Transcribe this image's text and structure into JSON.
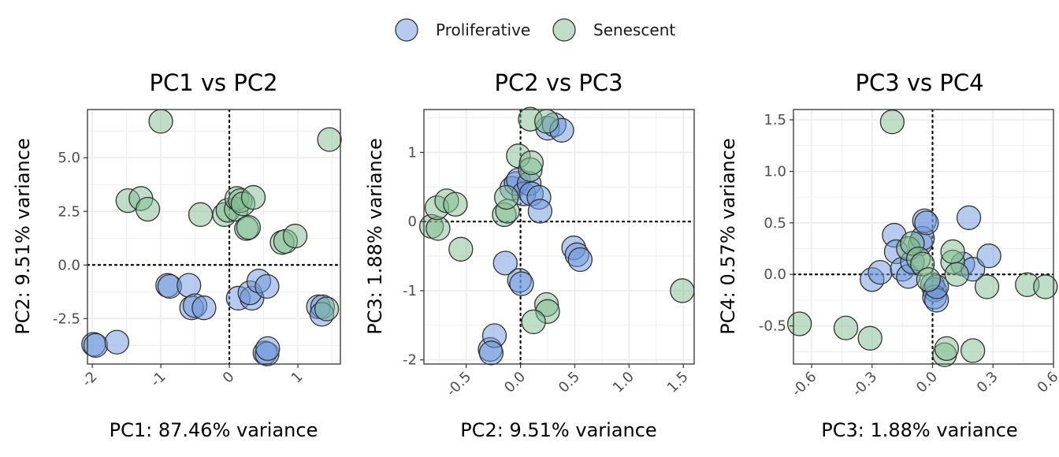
{
  "legend": {
    "placement": "top-center",
    "items": [
      {
        "label": "Proliferative",
        "color": "#6d98dc"
      },
      {
        "label": "Senescent",
        "color": "#7fbc8f"
      }
    ]
  },
  "style": {
    "point_alpha": 0.5,
    "point_stroke": "#333333",
    "gridlines": true,
    "reference_lines": "dotted at zero"
  },
  "chart_data": [
    {
      "type": "scatter",
      "title": "PC1 vs PC2",
      "xlabel": "PC1: 87.46% variance",
      "ylabel": "PC2: 9.51% variance",
      "xlim": [
        -2.07,
        1.62
      ],
      "ylim": [
        -4.62,
        7.25
      ],
      "xticks": [
        -2,
        -1,
        0,
        1
      ],
      "xtick_labels": [
        "-2",
        "-1",
        "0",
        "1"
      ],
      "yticks": [
        -2.5,
        0,
        2.5,
        5
      ],
      "ytick_labels": [
        "-2.5",
        "0.0",
        "2.5",
        "5.0"
      ],
      "series": [
        {
          "name": "Proliferative",
          "points": [
            [
              -1.98,
              -3.7
            ],
            [
              -1.95,
              -3.75
            ],
            [
              -1.64,
              -3.6
            ],
            [
              -0.9,
              -0.95
            ],
            [
              -0.87,
              -1.0
            ],
            [
              -0.59,
              -0.95
            ],
            [
              -0.55,
              -2.0
            ],
            [
              -0.5,
              -1.9
            ],
            [
              -0.37,
              -2.0
            ],
            [
              0.13,
              -1.55
            ],
            [
              0.33,
              -1.55
            ],
            [
              0.3,
              -1.3
            ],
            [
              0.43,
              -0.75
            ],
            [
              0.55,
              -1.0
            ],
            [
              0.52,
              -4.1
            ],
            [
              0.55,
              -4.15
            ],
            [
              0.56,
              -3.9
            ],
            [
              1.3,
              -1.95
            ],
            [
              1.36,
              -1.95
            ],
            [
              1.35,
              -2.3
            ]
          ]
        },
        {
          "name": "Senescent",
          "points": [
            [
              -1.0,
              6.7
            ],
            [
              1.46,
              5.85
            ],
            [
              -1.48,
              3.0
            ],
            [
              -1.29,
              3.1
            ],
            [
              -1.19,
              2.6
            ],
            [
              -0.42,
              2.35
            ],
            [
              -0.07,
              2.35
            ],
            [
              -0.02,
              2.55
            ],
            [
              0.1,
              2.6
            ],
            [
              0.11,
              3.1
            ],
            [
              0.16,
              3.0
            ],
            [
              0.2,
              2.85
            ],
            [
              0.35,
              3.15
            ],
            [
              0.25,
              1.7
            ],
            [
              0.28,
              1.75
            ],
            [
              0.77,
              1.05
            ],
            [
              0.82,
              1.1
            ],
            [
              0.96,
              1.35
            ],
            [
              1.42,
              -2.05
            ]
          ]
        }
      ]
    },
    {
      "type": "scatter",
      "title": "PC2 vs PC3",
      "xlabel": "PC2: 9.51% variance",
      "ylabel": "PC3: 1.88% variance",
      "xlim": [
        -0.89,
        1.6
      ],
      "ylim": [
        -2.06,
        1.62
      ],
      "xticks": [
        -0.5,
        0,
        0.5,
        1,
        1.5
      ],
      "xtick_labels": [
        "-0.5",
        "0.0",
        "0.5",
        "1.0",
        "1.5"
      ],
      "yticks": [
        -2,
        -1,
        0,
        1
      ],
      "ytick_labels": [
        "-2",
        "-1",
        "0",
        "1"
      ],
      "series": [
        {
          "name": "Proliferative",
          "points": [
            [
              -0.28,
              -1.85
            ],
            [
              -0.24,
              -1.65
            ],
            [
              -0.27,
              -1.9
            ],
            [
              -0.14,
              -0.6
            ],
            [
              -0.01,
              -0.85
            ],
            [
              0.01,
              -0.9
            ],
            [
              -0.08,
              0.48
            ],
            [
              -0.04,
              0.55
            ],
            [
              -0.02,
              0.6
            ],
            [
              0.03,
              0.4
            ],
            [
              0.08,
              0.55
            ],
            [
              0.1,
              0.4
            ],
            [
              0.17,
              0.35
            ],
            [
              0.18,
              0.15
            ],
            [
              0.25,
              1.35
            ],
            [
              0.31,
              1.4
            ],
            [
              0.38,
              1.32
            ],
            [
              0.49,
              -0.38
            ],
            [
              0.52,
              -0.48
            ],
            [
              0.55,
              -0.55
            ]
          ]
        },
        {
          "name": "Senescent",
          "points": [
            [
              -0.82,
              -0.07
            ],
            [
              -0.76,
              -0.1
            ],
            [
              -0.77,
              0.2
            ],
            [
              -0.68,
              0.3
            ],
            [
              -0.6,
              0.25
            ],
            [
              -0.55,
              -0.4
            ],
            [
              -0.15,
              0.1
            ],
            [
              -0.12,
              0.15
            ],
            [
              -0.13,
              0.35
            ],
            [
              -0.02,
              0.95
            ],
            [
              0.09,
              0.75
            ],
            [
              0.1,
              0.85
            ],
            [
              0.09,
              1.48
            ],
            [
              0.24,
              1.45
            ],
            [
              0.24,
              -1.2
            ],
            [
              0.25,
              -1.3
            ],
            [
              0.12,
              -1.45
            ],
            [
              1.49,
              -1.0
            ]
          ]
        }
      ]
    },
    {
      "type": "scatter",
      "title": "PC3 vs PC4",
      "xlabel": "PC3: 1.88% variance",
      "ylabel": "PC4: 0.57% variance",
      "xlim": [
        -0.69,
        0.6
      ],
      "ylim": [
        -0.87,
        1.6
      ],
      "xticks": [
        -0.6,
        -0.3,
        0,
        0.3,
        0.6
      ],
      "xtick_labels": [
        "-0.6",
        "-0.3",
        "0.0",
        "0.3",
        "0.6"
      ],
      "yticks": [
        -0.5,
        0,
        0.5,
        1,
        1.5
      ],
      "ytick_labels": [
        "-0.5",
        "0.0",
        "0.5",
        "1.0",
        "1.5"
      ],
      "series": [
        {
          "name": "Proliferative",
          "points": [
            [
              -0.3,
              -0.05
            ],
            [
              -0.26,
              0.02
            ],
            [
              -0.19,
              0.38
            ],
            [
              -0.18,
              0.22
            ],
            [
              -0.15,
              0.05
            ],
            [
              -0.12,
              -0.02
            ],
            [
              -0.1,
              0.12
            ],
            [
              -0.06,
              0.3
            ],
            [
              -0.05,
              0.35
            ],
            [
              -0.04,
              0.52
            ],
            [
              -0.03,
              0.5
            ],
            [
              0.0,
              -0.1
            ],
            [
              0.01,
              -0.15
            ],
            [
              0.01,
              -0.22
            ],
            [
              0.02,
              -0.25
            ],
            [
              0.02,
              -0.12
            ],
            [
              0.15,
              0.1
            ],
            [
              0.18,
              0.55
            ],
            [
              0.2,
              0.05
            ],
            [
              0.28,
              0.18
            ]
          ]
        },
        {
          "name": "Senescent",
          "points": [
            [
              -0.2,
              1.48
            ],
            [
              -0.66,
              -0.48
            ],
            [
              -0.43,
              -0.52
            ],
            [
              -0.31,
              -0.62
            ],
            [
              -0.12,
              0.25
            ],
            [
              -0.1,
              0.3
            ],
            [
              -0.07,
              0.15
            ],
            [
              -0.05,
              0.1
            ],
            [
              -0.02,
              -0.05
            ],
            [
              0.06,
              -0.78
            ],
            [
              0.07,
              -0.72
            ],
            [
              0.1,
              0.12
            ],
            [
              0.1,
              0.22
            ],
            [
              0.12,
              0.0
            ],
            [
              0.2,
              -0.74
            ],
            [
              0.27,
              -0.12
            ],
            [
              0.47,
              -0.1
            ],
            [
              0.56,
              -0.12
            ]
          ]
        }
      ]
    }
  ]
}
